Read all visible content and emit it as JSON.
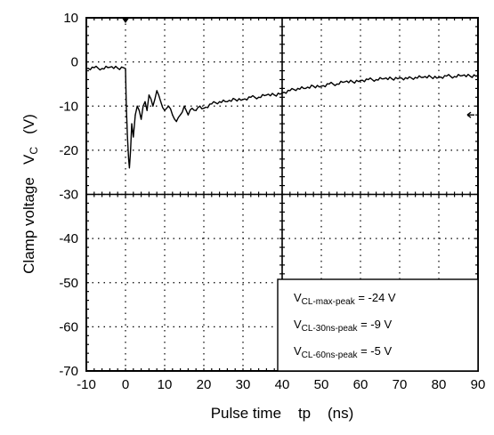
{
  "chart_data": {
    "type": "line",
    "xlabel": "Pulse time    tp    (ns)",
    "ylabel": "Clamp voltage   V",
    "ylabel_subscript": "C",
    "ylabel_unit": "(V)",
    "xlim": [
      -10,
      90
    ],
    "ylim": [
      -70,
      10
    ],
    "x_ticks": [
      -10,
      0,
      10,
      20,
      30,
      40,
      50,
      60,
      70,
      80,
      90
    ],
    "y_ticks": [
      10,
      0,
      -10,
      -20,
      -30,
      -40,
      -50,
      -60,
      -70
    ],
    "grid": true,
    "series": [
      {
        "x": [
          -10,
          -8,
          -6,
          -4,
          -2,
          -0.5,
          0,
          0.2,
          0.5,
          0.8,
          1,
          1.3,
          1.6,
          2,
          2.5,
          3,
          3.5,
          4,
          4.5,
          5,
          5.5,
          6,
          7,
          8,
          9,
          10,
          11,
          12,
          13,
          14,
          15,
          16,
          17,
          18,
          19,
          20,
          22,
          24,
          26,
          28,
          30,
          32,
          34,
          36,
          38,
          40,
          42,
          44,
          46,
          48,
          50,
          52,
          54,
          56,
          58,
          60,
          62,
          64,
          66,
          68,
          70,
          72,
          74,
          76,
          78,
          80,
          82,
          84,
          86,
          88,
          90
        ],
        "y": [
          -1.5,
          -1.3,
          -1.5,
          -1.2,
          -1.4,
          -1.3,
          -1.5,
          -10,
          -17,
          -22,
          -24,
          -20,
          -14,
          -17,
          -12,
          -10,
          -11,
          -13,
          -10,
          -9,
          -11,
          -7.5,
          -10,
          -6.5,
          -9,
          -11,
          -10,
          -12,
          -13.5,
          -12,
          -10,
          -12,
          -10.5,
          -11,
          -10,
          -10.5,
          -9.5,
          -9,
          -9,
          -8.5,
          -8.5,
          -8,
          -8,
          -7.5,
          -7.5,
          -7,
          -6.5,
          -6,
          -6,
          -5.5,
          -5.5,
          -5,
          -5,
          -4.5,
          -4.5,
          -4.2,
          -4,
          -4,
          -3.8,
          -3.8,
          -3.6,
          -3.8,
          -3.5,
          -3.5,
          -3.4,
          -3.5,
          -3.2,
          -3.3,
          -3.1,
          -3.2,
          -3
        ]
      }
    ],
    "annotations": [
      {
        "base": "V",
        "sub": "CL-max-peak",
        "rest": " = -24 V"
      },
      {
        "base": "V",
        "sub": "CL-30ns-peak",
        "rest": " = -9 V"
      },
      {
        "base": "V",
        "sub": "CL-60ns-peak",
        "rest": " = -5 V"
      }
    ],
    "markers": {
      "trigger_arrow_at_x": 0,
      "level_arrow_at_y": -12
    }
  }
}
